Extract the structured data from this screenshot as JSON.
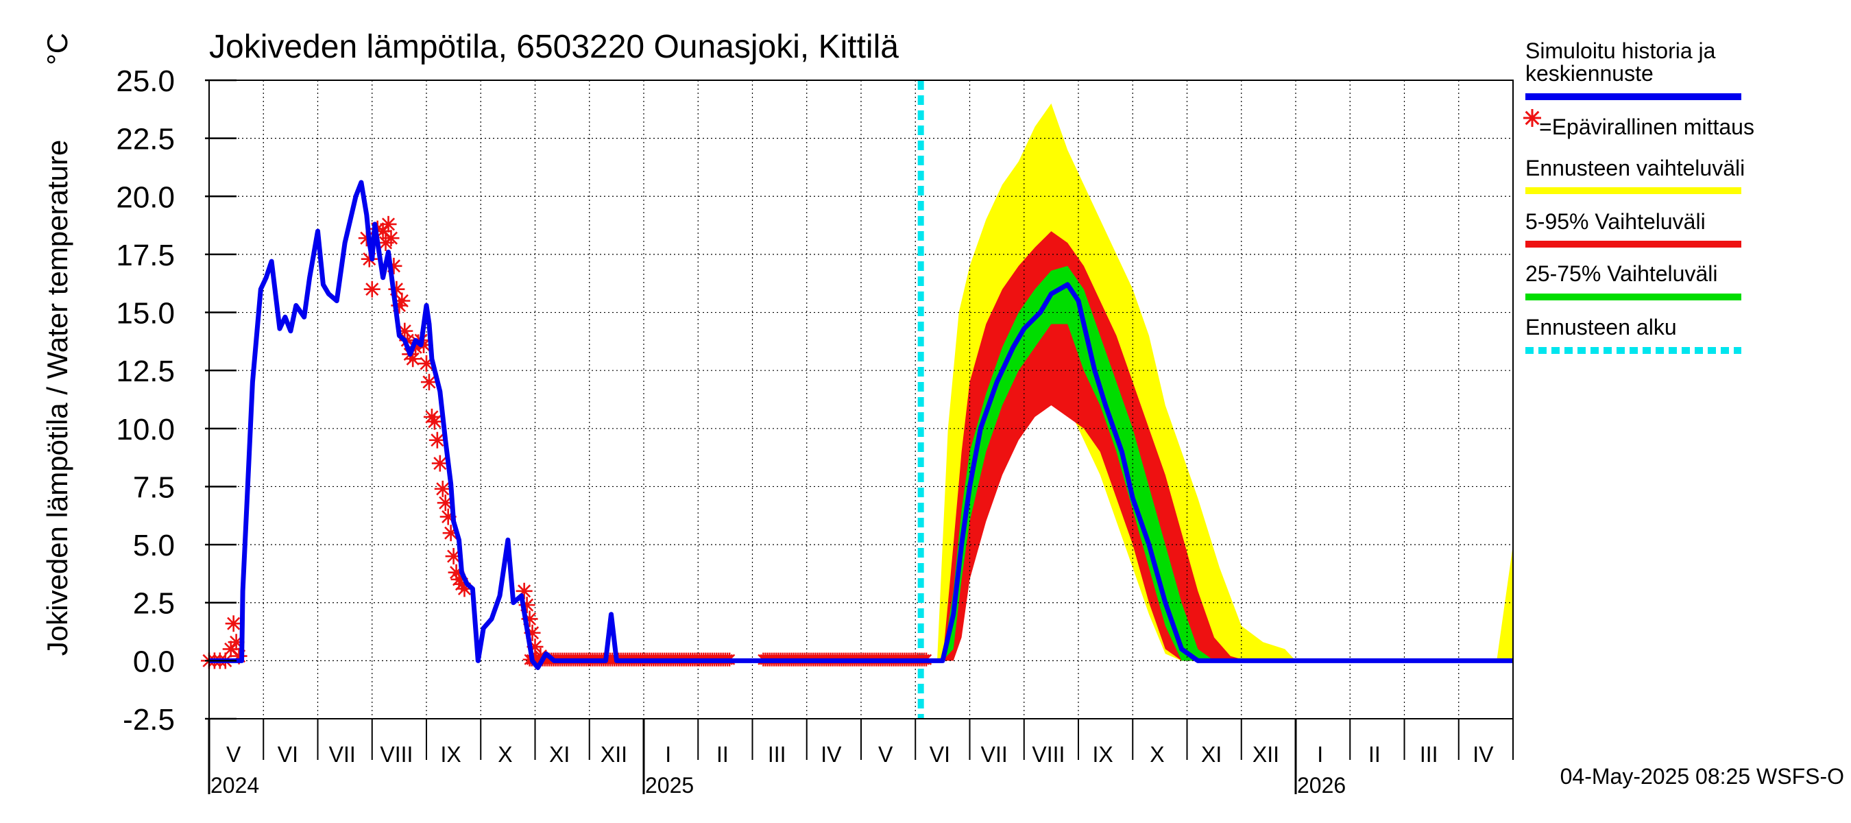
{
  "chart_data": {
    "type": "line",
    "title": "Jokiveden lämpötila, 6503220 Ounasjoki, Kittilä",
    "unit": "°C",
    "ylabel": "Jokiveden lämpötila / Water temperature",
    "ylim": [
      -2.5,
      25.0
    ],
    "yticks": [
      "25.0",
      "22.5",
      "20.0",
      "17.5",
      "15.0",
      "12.5",
      "10.0",
      "7.5",
      "5.0",
      "2.5",
      "0.0",
      "-2.5"
    ],
    "x_unit": "months since 2024-04-01",
    "xlim": [
      0,
      24
    ],
    "months": [
      "V",
      "VI",
      "VII",
      "VIII",
      "IX",
      "X",
      "XI",
      "XII",
      "I",
      "II",
      "III",
      "IV",
      "V",
      "VI",
      "VII",
      "VIII",
      "IX",
      "X",
      "XI",
      "XII",
      "I",
      "II",
      "III",
      "IV"
    ],
    "years": [
      {
        "label": "2024",
        "at": 0
      },
      {
        "label": "2025",
        "at": 8
      },
      {
        "label": "2026",
        "at": 20
      }
    ],
    "forecast_start": 13.1,
    "timestamp": "04-May-2025 08:25 WSFS-O",
    "legend": [
      {
        "label": "Simuloitu historia ja keskiennuste",
        "color": "#0000ee",
        "style": "line"
      },
      {
        "label": "=Epävirallinen mittaus",
        "color": "#ee1111",
        "style": "star"
      },
      {
        "label": "Ennusteen vaihteluväli",
        "color": "#ffff00",
        "style": "line"
      },
      {
        "label": "5-95% Vaihteluväli",
        "color": "#ee1111",
        "style": "line"
      },
      {
        "label": "25-75% Vaihteluväli",
        "color": "#00dd00",
        "style": "line"
      },
      {
        "label": "Ennusteen alku",
        "color": "#00e5ee",
        "style": "dashed"
      }
    ],
    "series": [
      {
        "name": "Simuloitu historia ja keskiennuste",
        "color": "#0000ee",
        "x": [
          0,
          0.6,
          0.62,
          0.7,
          0.8,
          0.95,
          1.05,
          1.15,
          1.3,
          1.4,
          1.5,
          1.6,
          1.75,
          1.85,
          2.0,
          2.1,
          2.2,
          2.35,
          2.5,
          2.7,
          2.8,
          2.9,
          2.95,
          3.0,
          3.05,
          3.2,
          3.3,
          3.4,
          3.5,
          3.6,
          3.7,
          3.8,
          3.9,
          4.0,
          4.05,
          4.1,
          4.25,
          4.35,
          4.45,
          4.5,
          4.6,
          4.65,
          4.75,
          4.85,
          4.95,
          5.05,
          5.2,
          5.35,
          5.5,
          5.6,
          5.75,
          5.85,
          5.95,
          6.05,
          6.2,
          6.35,
          6.5,
          6.7,
          7.0,
          7.3,
          7.4,
          7.5,
          7.6,
          8.0,
          10.0,
          13.5,
          13.7,
          13.85,
          14.0,
          14.2,
          14.5,
          14.8,
          15.0,
          15.3,
          15.5,
          15.8,
          16.0,
          16.3,
          16.5,
          16.8,
          17.0,
          17.3,
          17.6,
          17.9,
          18.2,
          24.0
        ],
        "y": [
          0,
          0,
          3,
          7,
          12,
          16,
          16.5,
          17.2,
          14.3,
          14.8,
          14.2,
          15.3,
          14.8,
          16.5,
          18.5,
          16.2,
          15.8,
          15.5,
          18,
          20,
          20.6,
          19.2,
          18,
          17.3,
          18.8,
          16.5,
          17.6,
          15.8,
          14,
          13.8,
          13.2,
          13.8,
          13.6,
          15.3,
          14.5,
          13,
          11.6,
          9.5,
          7.6,
          6,
          5.2,
          3.8,
          3.3,
          3.1,
          0,
          1.4,
          1.8,
          2.8,
          5.2,
          2.5,
          2.8,
          1.4,
          0,
          -0.3,
          0.3,
          0,
          0,
          0,
          0,
          0,
          2,
          0,
          0,
          0,
          0,
          0,
          2,
          5,
          7.5,
          10,
          12,
          13.5,
          14.3,
          15,
          15.8,
          16.2,
          15.5,
          12.5,
          11,
          9,
          7,
          5,
          2.5,
          0.5,
          0,
          0
        ]
      },
      {
        "name": "Ennusteen vaihteluväli",
        "color": "#ffff00",
        "x": [
          13.4,
          13.6,
          13.8,
          14.0,
          14.3,
          14.6,
          14.9,
          15.2,
          15.5,
          15.8,
          16.1,
          16.4,
          16.7,
          17.0,
          17.3,
          17.6,
          17.9,
          18.2,
          18.6,
          19.0,
          19.4,
          19.8,
          20.0,
          23.7,
          24.0
        ],
        "upper": [
          0,
          10,
          15,
          17,
          19,
          20.5,
          21.5,
          23,
          24,
          22,
          20.5,
          19,
          17.5,
          16,
          14,
          11,
          9,
          7,
          4,
          1.5,
          0.8,
          0.5,
          0,
          0,
          5
        ],
        "lower": [
          0,
          0,
          4,
          6.5,
          9.5,
          11,
          12,
          12.5,
          12,
          11,
          9.5,
          8,
          6,
          4,
          2,
          0.3,
          0,
          0,
          0,
          0,
          0,
          0,
          0,
          0,
          0
        ]
      },
      {
        "name": "5-95% Vaihteluväli",
        "color": "#ee1111",
        "x": [
          13.5,
          13.7,
          13.85,
          14.0,
          14.3,
          14.6,
          14.9,
          15.2,
          15.5,
          15.8,
          16.1,
          16.4,
          16.7,
          17.0,
          17.3,
          17.6,
          17.9,
          18.2,
          18.5,
          18.8,
          19.1
        ],
        "upper": [
          0,
          5,
          9,
          12,
          14.5,
          16,
          17,
          17.8,
          18.5,
          18,
          17,
          15.5,
          14,
          12,
          10,
          8,
          5.5,
          3,
          1,
          0.2,
          0
        ],
        "lower": [
          0,
          0,
          1,
          3.5,
          6,
          8,
          9.5,
          10.5,
          11,
          10.5,
          10,
          9,
          7,
          5,
          2.5,
          0.5,
          0,
          0,
          0,
          0,
          0
        ]
      },
      {
        "name": "25-75% Vaihteluväli",
        "color": "#00dd00",
        "x": [
          13.5,
          13.7,
          13.85,
          14.0,
          14.3,
          14.6,
          14.9,
          15.2,
          15.5,
          15.8,
          16.1,
          16.4,
          16.7,
          17.0,
          17.3,
          17.6,
          17.9,
          18.2,
          18.5
        ],
        "upper": [
          0,
          3,
          6.5,
          9,
          11.5,
          13.5,
          15,
          16,
          16.8,
          17,
          16,
          14,
          12,
          10,
          7.5,
          5,
          2.5,
          0.5,
          0
        ],
        "lower": [
          0,
          0.5,
          3.5,
          6,
          9,
          11,
          12.5,
          13.5,
          14.5,
          14.5,
          12.5,
          11,
          9,
          6.5,
          4,
          1.5,
          0,
          0,
          0
        ]
      }
    ],
    "unofficial_measurements": {
      "color": "#ee1111",
      "x": [
        0.0,
        0.1,
        0.2,
        0.3,
        0.4,
        0.45,
        0.5,
        0.55,
        2.9,
        2.95,
        3.0,
        3.1,
        3.2,
        3.25,
        3.3,
        3.35,
        3.4,
        3.45,
        3.5,
        3.55,
        3.6,
        3.65,
        3.7,
        3.75,
        3.8,
        3.85,
        3.9,
        3.95,
        4.0,
        4.05,
        4.1,
        4.15,
        4.2,
        4.25,
        4.3,
        4.35,
        4.4,
        4.45,
        4.5,
        4.55,
        4.6,
        4.65,
        4.7,
        5.8,
        5.85,
        5.9,
        5.95,
        6.0,
        6.1
      ],
      "y": [
        0,
        0,
        0,
        0,
        0.5,
        1.6,
        0.8,
        0.2,
        18.2,
        17.3,
        16,
        18.6,
        18.5,
        18,
        18.8,
        18.2,
        17,
        16,
        15.3,
        15.5,
        14.2,
        13.8,
        13.2,
        13,
        13.5,
        13.7,
        13.8,
        13.6,
        12.8,
        12,
        10.5,
        10.3,
        9.5,
        8.5,
        7.4,
        6.8,
        6.2,
        5.5,
        4.5,
        3.8,
        3.5,
        3.3,
        3.1,
        3,
        2.4,
        1.8,
        1.2,
        0.6,
        0.2
      ],
      "dense_zero_ranges": [
        [
          5.9,
          9.6
        ],
        [
          10.2,
          13.2
        ]
      ]
    }
  }
}
